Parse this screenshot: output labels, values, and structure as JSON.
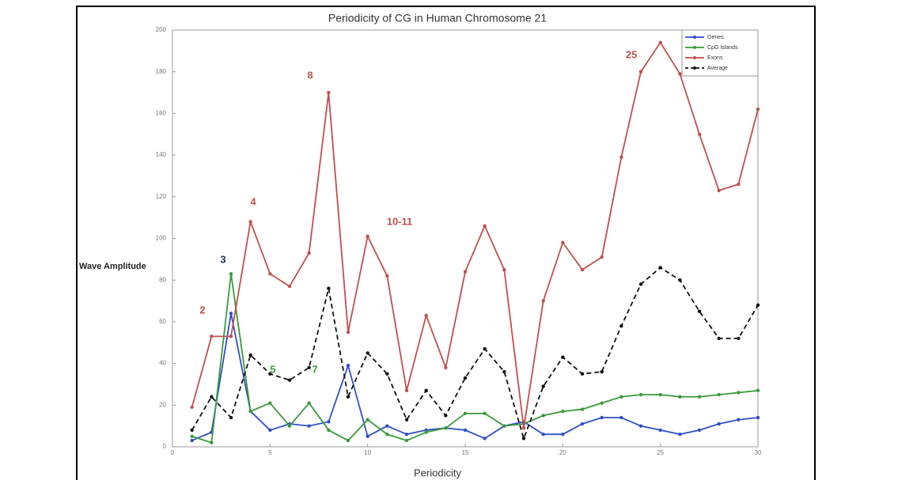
{
  "chart_data": {
    "type": "line",
    "title": "Periodicity of CG in Human Chromosome 21",
    "xlabel": "Periodicity",
    "ylabel": "Wave Amplitude",
    "x": [
      1,
      2,
      3,
      4,
      5,
      6,
      7,
      8,
      9,
      10,
      11,
      12,
      13,
      14,
      15,
      16,
      17,
      18,
      19,
      20,
      21,
      22,
      23,
      24,
      25,
      26,
      27,
      28,
      29,
      30
    ],
    "series": [
      {
        "name": "Genes",
        "color": "#3050c8",
        "dash": false,
        "values": [
          3,
          7,
          64,
          17,
          8,
          11,
          10,
          12,
          39,
          5,
          10,
          6,
          8,
          9,
          8,
          4,
          10,
          12,
          6,
          6,
          11,
          14,
          14,
          10,
          8,
          6,
          8,
          11,
          13,
          14
        ]
      },
      {
        "name": "CpG Islands",
        "color": "#3a9a3a",
        "dash": false,
        "values": [
          5,
          2,
          83,
          17,
          21,
          10,
          21,
          8,
          3,
          13,
          6,
          3,
          7,
          9,
          16,
          16,
          10,
          11,
          15,
          17,
          18,
          21,
          24,
          25,
          25,
          24,
          24,
          25,
          26,
          27
        ]
      },
      {
        "name": "Exons",
        "color": "#c0504d",
        "dash": false,
        "values": [
          19,
          53,
          53,
          108,
          83,
          77,
          93,
          170,
          55,
          101,
          82,
          27,
          63,
          38,
          84,
          106,
          85,
          9,
          70,
          98,
          85,
          91,
          139,
          180,
          194,
          179,
          150,
          123,
          126,
          162
        ]
      },
      {
        "name": "Average",
        "color": "#111111",
        "dash": true,
        "values": [
          8,
          24,
          14,
          44,
          35,
          32,
          38,
          76,
          24,
          45,
          35,
          13,
          27,
          15,
          33,
          47,
          36,
          4,
          29,
          43,
          35,
          36,
          58,
          78,
          86,
          80,
          65,
          52,
          52,
          68
        ]
      }
    ],
    "annotations": [
      {
        "text": "2",
        "color": "#c0504d"
      },
      {
        "text": "3",
        "color": "#1f2f5a"
      },
      {
        "text": "4",
        "color": "#c0504d"
      },
      {
        "text": "5",
        "color": "#3a9a3a"
      },
      {
        "text": "7",
        "color": "#3a9a3a"
      },
      {
        "text": "8",
        "color": "#c0504d"
      },
      {
        "text": "10-11",
        "color": "#c0504d"
      },
      {
        "text": "25",
        "color": "#c0504d"
      }
    ],
    "xlim": [
      0,
      30
    ],
    "xticks": [
      0,
      5,
      10,
      15,
      20,
      25,
      30
    ],
    "ylim": [
      0,
      200
    ],
    "yticks": [
      0,
      20,
      40,
      60,
      80,
      100,
      120,
      140,
      160,
      180,
      200
    ],
    "legend": "upper-right",
    "grid": false
  }
}
